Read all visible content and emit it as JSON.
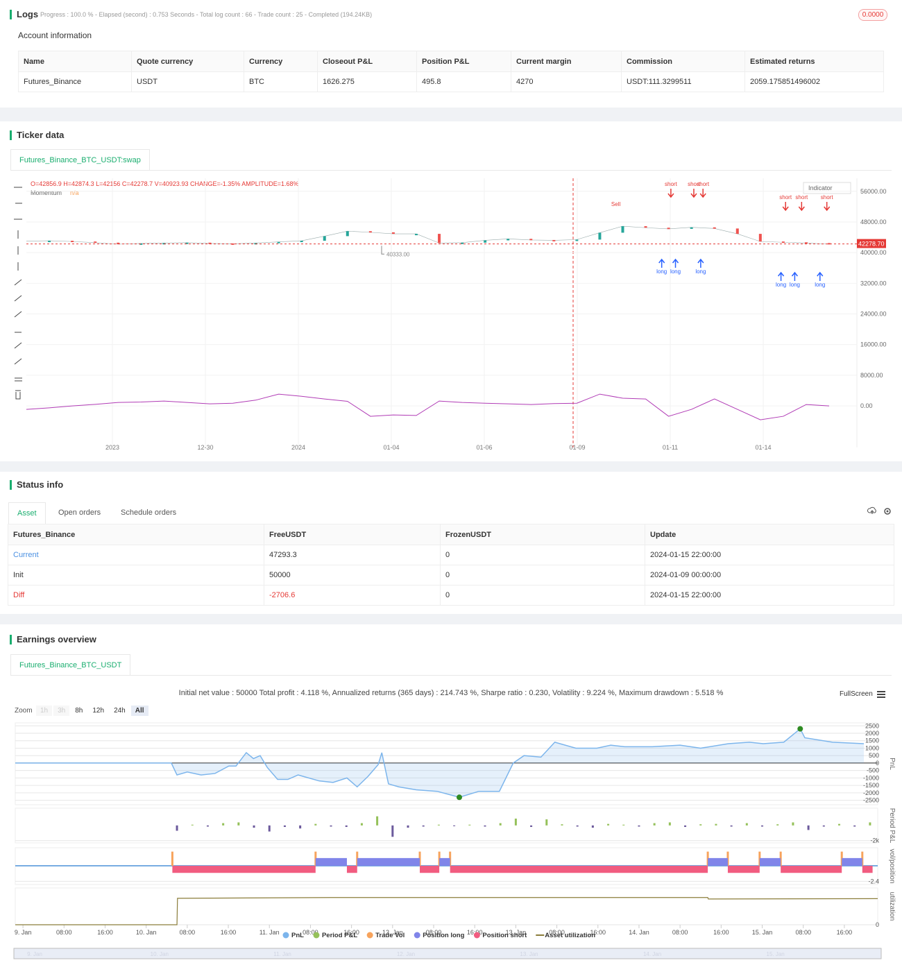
{
  "logs": {
    "title": "Logs",
    "progress": "Progress : 100.0 % - Elapsed (second) : 0.753  Seconds - Total log count : 66 - Trade count : 25 - Completed (194.24KB)",
    "badge": "0.0000"
  },
  "account": {
    "title": "Account information",
    "columns": [
      "Name",
      "Quote currency",
      "Currency",
      "Closeout P&L",
      "Position P&L",
      "Current margin",
      "Commission",
      "Estimated returns"
    ],
    "rows": [
      [
        "Futures_Binance",
        "USDT",
        "BTC",
        "1626.275",
        "495.8",
        "4270",
        "USDT:111.3299511",
        "2059.175851496002"
      ]
    ]
  },
  "ticker": {
    "title": "Ticker data",
    "tab": "Futures_Binance_BTC_USDT:swap",
    "ohlc": "O=42856.9 H=42874.3 L=42156 C=42278.7 V=40923.93 CHANGE=-1.35% AMPLITUDE=1.68%",
    "indicator_name": "Momentum",
    "indicator_value": "n/a",
    "indicator_button": "Indicator",
    "chart_data": {
      "type": "line",
      "x_labels": [
        "2023",
        "12-30",
        "2024",
        "01-04",
        "01-06",
        "01-09",
        "01-11",
        "01-14"
      ],
      "ylim": [
        -9400,
        59400
      ],
      "yticks": [
        {
          "value": 56000,
          "label": "56000.00"
        },
        {
          "value": 48000,
          "label": "48000.00"
        },
        {
          "value": 40000,
          "label": "40000.00"
        },
        {
          "value": 32000,
          "label": "32000.00"
        },
        {
          "value": 24000,
          "label": "24000.00"
        },
        {
          "value": 16000,
          "label": "16000.00"
        },
        {
          "value": 8000,
          "label": "8000.00"
        },
        {
          "value": 0,
          "label": "0.00"
        }
      ],
      "values": [
        43000,
        43100,
        42900,
        42600,
        42200,
        42400,
        42500,
        42600,
        42400,
        42300,
        42500,
        42800,
        43100,
        44300,
        45600,
        45300,
        44900,
        44900,
        42500,
        42600,
        43200,
        43600,
        43300,
        43200,
        43400,
        45200,
        46900,
        46500,
        46200,
        46600,
        46300,
        44900,
        42900,
        42700,
        42500,
        42200
      ],
      "momentum": [
        -905,
        -500,
        0,
        400,
        905,
        1000,
        1267,
        900,
        543,
        700,
        1500,
        3077,
        2500,
        1810,
        1200,
        -2715,
        -2353,
        -2500,
        1267,
        905,
        700,
        543,
        362,
        600,
        700,
        3077,
        2000,
        1810,
        -2715,
        -905,
        1810,
        -905,
        -3620,
        -2715,
        362,
        0
      ],
      "signals": [
        {
          "text": "short",
          "x": 28.1
        },
        {
          "text": "short",
          "x": 29.1
        },
        {
          "text": "short",
          "x": 29.5
        },
        {
          "text": "short",
          "x": 33.1
        },
        {
          "text": "short",
          "x": 33.8
        },
        {
          "text": "short",
          "x": 34.9
        },
        {
          "text": "Sell",
          "x": 25.7
        },
        {
          "text": "long",
          "x": 27.7
        },
        {
          "text": "long",
          "x": 28.3
        },
        {
          "text": "long",
          "x": 29.4
        },
        {
          "text": "long",
          "x": 32.9
        },
        {
          "text": "long",
          "x": 33.5
        },
        {
          "text": "long",
          "x": 34.6
        }
      ],
      "last_price": {
        "value": 42278.7,
        "label": "42278.70"
      },
      "low_mark": {
        "value": 40333,
        "label": "40333.00"
      }
    }
  },
  "status": {
    "title": "Status info",
    "tabs": [
      "Asset",
      "Open orders",
      "Schedule orders"
    ],
    "columns": [
      "Futures_Binance",
      "FreeUSDT",
      "FrozenUSDT",
      "Update"
    ],
    "rows": [
      [
        "Current",
        "47293.3",
        "0",
        "2024-01-15 22:00:00"
      ],
      [
        "Init",
        "50000",
        "0",
        "2024-01-09 00:00:00"
      ],
      [
        "Diff",
        "-2706.6",
        "0",
        "2024-01-15 22:00:00"
      ]
    ]
  },
  "earnings": {
    "title": "Earnings overview",
    "tab": "Futures_Binance_BTC_USDT",
    "summary": "Initial net value : 50000  Total profit : 4.118 %, Annualized returns (365 days) : 214.743 %, Sharpe ratio : 0.230, Volatility : 9.224 %, Maximum drawdown : 5.518 %",
    "fullscreen": "FullScreen",
    "zoom": {
      "label": "Zoom",
      "buttons": [
        "1h",
        "3h",
        "8h",
        "12h",
        "24h",
        "All"
      ]
    },
    "chart_data": {
      "type": "line",
      "xlim": [
        -1.5,
        166.5
      ],
      "legend": "bottom",
      "xticks": [
        {
          "value": 0,
          "label": "9. Jan"
        },
        {
          "value": 8,
          "label": "08:00"
        },
        {
          "value": 16,
          "label": "16:00"
        },
        {
          "value": 24,
          "label": "10. Jan"
        },
        {
          "value": 32,
          "label": "08:00"
        },
        {
          "value": 40,
          "label": "16:00"
        },
        {
          "value": 48,
          "label": "11. Jan"
        },
        {
          "value": 56,
          "label": "08:00"
        },
        {
          "value": 64,
          "label": "16:00"
        },
        {
          "value": 72,
          "label": "12. Jan"
        },
        {
          "value": 80,
          "label": "08:00"
        },
        {
          "value": 88,
          "label": "16:00"
        },
        {
          "value": 96,
          "label": "13. Jan"
        },
        {
          "value": 104,
          "label": "08:00"
        },
        {
          "value": 112,
          "label": "16:00"
        },
        {
          "value": 120,
          "label": "14. Jan"
        },
        {
          "value": 128,
          "label": "08:00"
        },
        {
          "value": 136,
          "label": "16:00"
        },
        {
          "value": 144,
          "label": "15. Jan"
        },
        {
          "value": 152,
          "label": "08:00"
        },
        {
          "value": 160,
          "label": "16:00"
        }
      ],
      "panes": [
        {
          "title": "PnL",
          "ylim": [
            -2800,
            2700
          ],
          "yticks": [
            2500,
            2000,
            1500,
            1000,
            500,
            0,
            -500,
            -1000,
            -1500,
            -2000,
            -2500
          ]
        },
        {
          "title": "Period P&L",
          "ylim": [
            -2300,
            2270
          ],
          "yticks": [
            {
              "value": -2000,
              "label": "-2k"
            }
          ]
        },
        {
          "title": "vol/position",
          "ylim": [
            -2.9,
            2.8
          ],
          "yticks": [
            -2.4
          ]
        },
        {
          "title": "utilization",
          "ylim": [
            0,
            1
          ],
          "yticks": [
            0
          ]
        }
      ],
      "series": [
        {
          "name": "PnL",
          "color": "#7cb5ec",
          "pane": 0,
          "x": [
            -1.5,
            28.9,
            30,
            32,
            34.7,
            37.4,
            40.1,
            41.5,
            43.5,
            44.9,
            46.2,
            47.6,
            49.6,
            51.6,
            53.6,
            57.7,
            60.4,
            63.1,
            65.1,
            67.2,
            69.2,
            69.9,
            71.2,
            73.2,
            76.6,
            80.7,
            85,
            88.8,
            92.8,
            95.5,
            97.6,
            100.9,
            103.6,
            107.7,
            111.8,
            114.5,
            117.2,
            122.6,
            128,
            132,
            137.4,
            141.5,
            144.2,
            148.2,
            151.4,
            152.3,
            157.7,
            163.8
          ],
          "values": [
            0,
            0,
            -800,
            -600,
            -800,
            -700,
            -200,
            -200,
            700,
            300,
            500,
            -300,
            -1100,
            -1100,
            -800,
            -1200,
            -1300,
            -1000,
            -1600,
            -900,
            -100,
            700,
            -1400,
            -1600,
            -1800,
            -1900,
            -2300,
            -1900,
            -1900,
            0,
            500,
            400,
            1400,
            1000,
            1000,
            1200,
            1100,
            1100,
            1200,
            1000,
            1300,
            1400,
            1300,
            1400,
            2300,
            1700,
            1400,
            1300
          ]
        },
        {
          "name": "Period P&L",
          "color": "#95c15a",
          "negative_color": "#6c5a9c",
          "pane": 1,
          "x": [
            30,
            33,
            36,
            39,
            42,
            45,
            48,
            51,
            54,
            57,
            60,
            63,
            66,
            69,
            72,
            75,
            78,
            81,
            84,
            87,
            90,
            93,
            96,
            99,
            102,
            105,
            108,
            111,
            114,
            117,
            120,
            123,
            126,
            129,
            132,
            135,
            138,
            141,
            144,
            147,
            150,
            153,
            156,
            159,
            162,
            165
          ],
          "values": [
            -700,
            100,
            -150,
            300,
            400,
            -300,
            -800,
            -200,
            -400,
            200,
            -150,
            -200,
            300,
            1200,
            -1500,
            -300,
            -150,
            100,
            -100,
            100,
            -150,
            300,
            900,
            -200,
            800,
            150,
            -150,
            -300,
            200,
            100,
            -150,
            300,
            400,
            -200,
            150,
            200,
            -150,
            300,
            -150,
            150,
            400,
            -600,
            -150,
            200,
            -150,
            400
          ]
        },
        {
          "name": "Trade Vol",
          "color": "#f7a35c",
          "pane": 2,
          "x": [
            29.1,
            57,
            65.1,
            77.3,
            81.1,
            83.2,
            133.4,
            137.3,
            143.5,
            147.6,
            159.5,
            163.5
          ],
          "values": [
            2.2,
            2.2,
            2.2,
            2.2,
            2.2,
            2.2,
            2.2,
            2.2,
            2.2,
            2.2,
            2.2,
            2.2
          ]
        },
        {
          "name": "Position long",
          "color": "#8085e9",
          "pane": 2,
          "x": [
            57,
            65.1,
            81.1,
            133.4,
            143.5,
            159.5
          ],
          "x_end": [
            63.1,
            77.3,
            83.2,
            137.3,
            147.6,
            163.5
          ],
          "values": [
            1.2,
            1.2,
            1.2,
            1.2,
            1.2,
            1.2
          ]
        },
        {
          "name": "Position short",
          "color": "#f15c80",
          "pane": 2,
          "x": [
            29.1,
            63.1,
            77.3,
            83.2,
            137.3,
            147.6,
            163.5
          ],
          "x_end": [
            57,
            65.1,
            81.1,
            133.4,
            143.5,
            159.5,
            165.5
          ],
          "values": [
            -1.1,
            -1.1,
            -1.1,
            -1.1,
            -1.1,
            -1.1,
            -1.1
          ]
        },
        {
          "name": "Asset utilization",
          "color": "#8b7d3a",
          "pane": 3,
          "x": [
            -1.5,
            30,
            30.1,
            60,
            100,
            133.4,
            133.5,
            166.5
          ],
          "values": [
            0,
            0,
            0.72,
            0.74,
            0.74,
            0.74,
            0.7,
            0.71
          ]
        }
      ]
    }
  }
}
